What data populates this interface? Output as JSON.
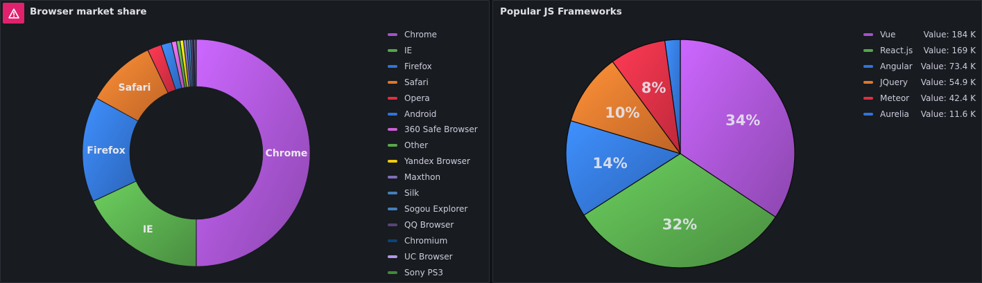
{
  "chart_data": [
    {
      "type": "pie",
      "variant": "donut",
      "title": "Browser market share",
      "warning": true,
      "labels_shown": [
        "Chrome",
        "IE",
        "Firefox",
        "Safari"
      ],
      "series": [
        {
          "name": "Chrome",
          "value": 50.0,
          "color": "#a352cc"
        },
        {
          "name": "IE",
          "value": 18.0,
          "color": "#56a64b"
        },
        {
          "name": "Firefox",
          "value": 15.0,
          "color": "#3274d9"
        },
        {
          "name": "Safari",
          "value": 10.0,
          "color": "#e0752d"
        },
        {
          "name": "Opera",
          "value": 2.0,
          "color": "#e02f44"
        },
        {
          "name": "Android",
          "value": 1.5,
          "color": "#3274d9"
        },
        {
          "name": "360 Safe Browser",
          "value": 0.7,
          "color": "#ca5fd4"
        },
        {
          "name": "Other",
          "value": 0.5,
          "color": "#5aa64b"
        },
        {
          "name": "Yandex Browser",
          "value": 0.5,
          "color": "#f2cc0c"
        },
        {
          "name": "Maxthon",
          "value": 0.4,
          "color": "#806eb7"
        },
        {
          "name": "Silk",
          "value": 0.3,
          "color": "#447ebc"
        },
        {
          "name": "Sogou Explorer",
          "value": 0.3,
          "color": "#447ebc"
        },
        {
          "name": "QQ Browser",
          "value": 0.3,
          "color": "#584477"
        },
        {
          "name": "Chromium",
          "value": 0.2,
          "color": "#0a437c"
        },
        {
          "name": "UC Browser",
          "value": 0.2,
          "color": "#b197e8"
        },
        {
          "name": "Sony PS3",
          "value": 0.1,
          "color": "#3f8b3a"
        }
      ]
    },
    {
      "type": "pie",
      "title": "Popular JS Frameworks",
      "series": [
        {
          "name": "Vue",
          "value": 184,
          "display": "184 K",
          "percent": "34%",
          "color": "#a352cc"
        },
        {
          "name": "React.js",
          "value": 169,
          "display": "169 K",
          "percent": "32%",
          "color": "#56a64b"
        },
        {
          "name": "Angular",
          "value": 73.4,
          "display": "73.4 K",
          "percent": "14%",
          "color": "#3274d9"
        },
        {
          "name": "JQuery",
          "value": 54.9,
          "display": "54.9 K",
          "percent": "10%",
          "color": "#e0752d"
        },
        {
          "name": "Meteor",
          "value": 42.4,
          "display": "42.4 K",
          "percent": "8%",
          "color": "#e02f44"
        },
        {
          "name": "Aurelia",
          "value": 11.6,
          "display": "11.6 K",
          "percent": "",
          "color": "#3274d9"
        }
      ],
      "value_prefix": "Value: "
    }
  ]
}
